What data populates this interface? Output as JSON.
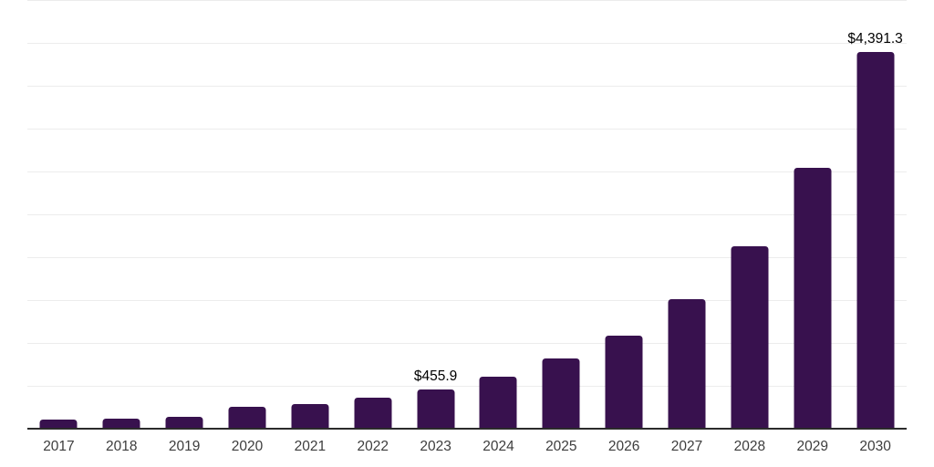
{
  "chart_data": {
    "type": "bar",
    "title": "",
    "xlabel": "",
    "ylabel": "",
    "categories": [
      "2017",
      "2018",
      "2019",
      "2020",
      "2021",
      "2022",
      "2023",
      "2024",
      "2025",
      "2026",
      "2027",
      "2028",
      "2029",
      "2030"
    ],
    "values": [
      110,
      122,
      137,
      260,
      283,
      362,
      455.9,
      602,
      818,
      1090,
      1515,
      2130,
      3040,
      4391.3
    ],
    "data_labels": {
      "2023": "$455.9",
      "2030": "$4,391.3"
    },
    "ylim": [
      0,
      5000
    ],
    "gridline_step": 500,
    "grid": "horizontal",
    "legend": "none",
    "colors": {
      "bar": "#38114e",
      "gridline": "#ececec",
      "axis_line": "#2b2b2b",
      "tick_label": "#3d3d3d",
      "data_label": "#000000",
      "background": "#ffffff"
    }
  }
}
